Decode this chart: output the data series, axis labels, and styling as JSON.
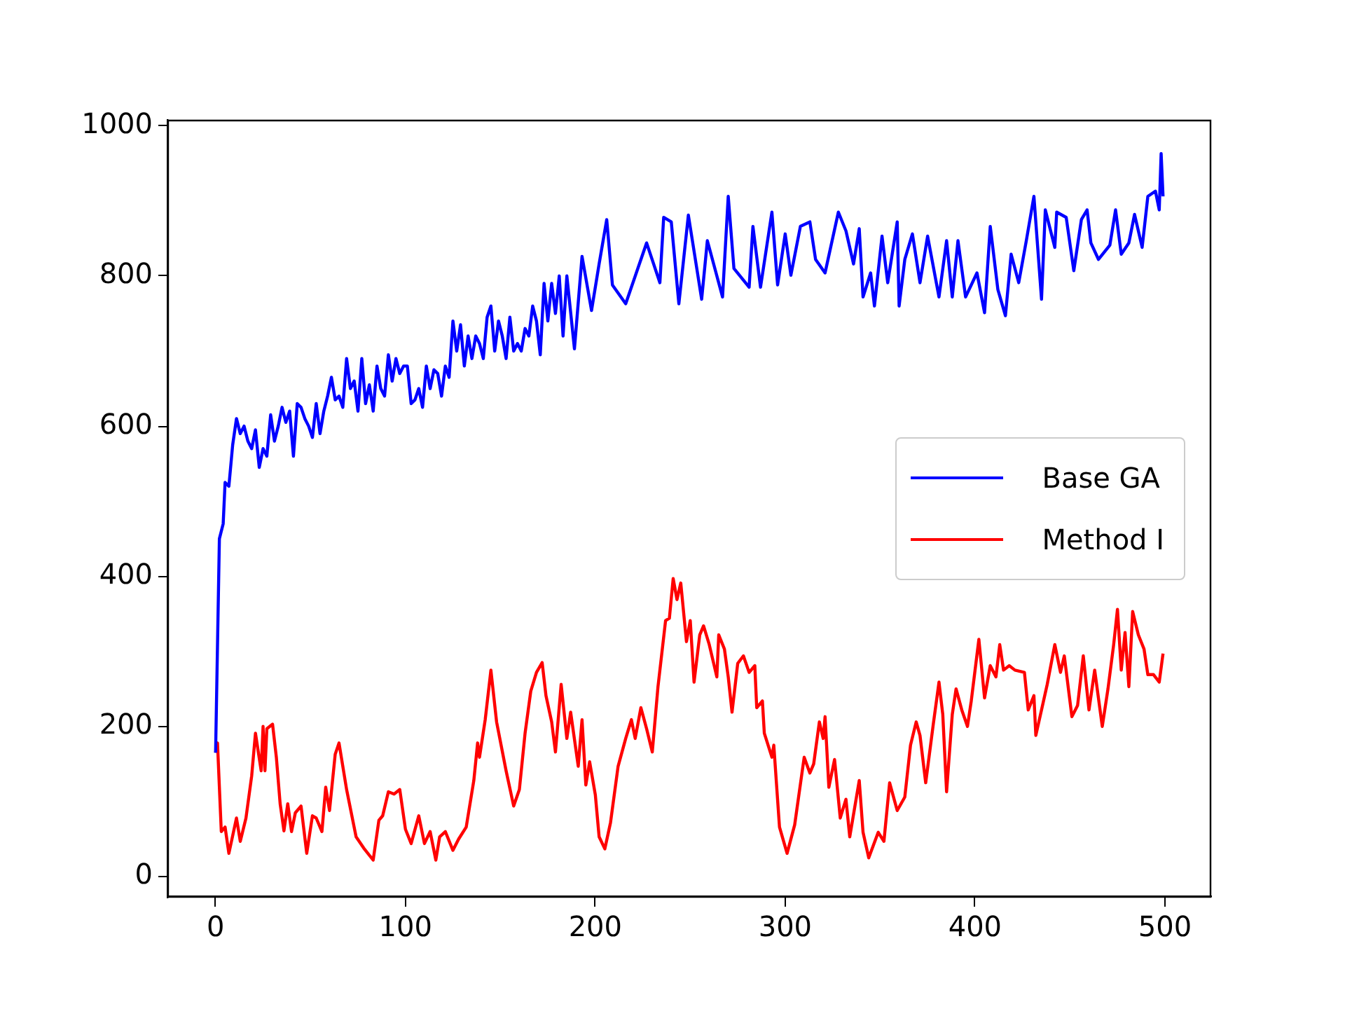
{
  "chart_data": {
    "type": "line",
    "xlim": [
      -25,
      524
    ],
    "ylim": [
      -27,
      1007
    ],
    "xticks": [
      0,
      100,
      200,
      300,
      400,
      500
    ],
    "yticks": [
      0,
      200,
      400,
      600,
      800,
      1000
    ],
    "legend": "right",
    "series": [
      {
        "name": "Base GA",
        "color": "#0000ff",
        "x": [
          0,
          2,
          4,
          5,
          7,
          9,
          11,
          13,
          15,
          17,
          19,
          21,
          23,
          25,
          27,
          29,
          31,
          33,
          35,
          37,
          39,
          41,
          43,
          45,
          47,
          49,
          51,
          53,
          55,
          57,
          59,
          61,
          63,
          65,
          67,
          69,
          71,
          73,
          75,
          77,
          79,
          81,
          83,
          85,
          87,
          89,
          91,
          93,
          95,
          97,
          99,
          101,
          103,
          105,
          107,
          109,
          111,
          113,
          115,
          117,
          119,
          121,
          123,
          125,
          127,
          129,
          131,
          133,
          135,
          137,
          139,
          141,
          143,
          145,
          147,
          149,
          151,
          153,
          155,
          157,
          159,
          161,
          163,
          165,
          167,
          169,
          171,
          173,
          175,
          177,
          179,
          181,
          183,
          185,
          189,
          193,
          198,
          202,
          206,
          209,
          216,
          227,
          234,
          236,
          240,
          244,
          249,
          256,
          259,
          267,
          270,
          273,
          281,
          283,
          287,
          293,
          296,
          300,
          303,
          308,
          313,
          316,
          321,
          328,
          332,
          336,
          339,
          341,
          345,
          347,
          351,
          354,
          359,
          360,
          363,
          367,
          371,
          375,
          381,
          385,
          388,
          391,
          395,
          401,
          405,
          408,
          412,
          416,
          419,
          423,
          427,
          431,
          435,
          437,
          442,
          443,
          448,
          452,
          456,
          459,
          461,
          465,
          471,
          474,
          477,
          481,
          484,
          488,
          491,
          495,
          497,
          498,
          499
        ],
        "values": [
          165,
          450,
          470,
          525,
          520,
          575,
          610,
          590,
          600,
          580,
          570,
          595,
          545,
          570,
          560,
          615,
          580,
          600,
          625,
          605,
          620,
          560,
          630,
          625,
          610,
          600,
          585,
          630,
          590,
          620,
          640,
          665,
          635,
          640,
          625,
          690,
          650,
          660,
          620,
          690,
          630,
          655,
          620,
          680,
          650,
          640,
          695,
          660,
          690,
          670,
          680,
          680,
          630,
          635,
          650,
          625,
          680,
          650,
          675,
          670,
          640,
          680,
          665,
          740,
          700,
          735,
          680,
          720,
          690,
          720,
          710,
          690,
          745,
          760,
          700,
          740,
          720,
          690,
          745,
          700,
          710,
          700,
          730,
          720,
          760,
          740,
          695,
          790,
          740,
          790,
          750,
          800,
          720,
          800,
          703,
          826,
          754,
          816,
          875,
          788,
          763,
          844,
          791,
          878,
          872,
          763,
          881,
          769,
          847,
          772,
          906,
          810,
          785,
          866,
          785,
          885,
          788,
          856,
          801,
          866,
          872,
          822,
          804,
          885,
          860,
          816,
          863,
          772,
          804,
          760,
          853,
          791,
          872,
          760,
          822,
          856,
          791,
          853,
          772,
          847,
          772,
          847,
          772,
          804,
          751,
          866,
          782,
          747,
          829,
          791,
          847,
          906,
          769,
          888,
          838,
          885,
          878,
          807,
          875,
          888,
          844,
          822,
          841,
          888,
          829,
          844,
          882,
          838,
          906,
          913,
          888,
          963,
          906
        ]
      },
      {
        "name": "Method I",
        "color": "#ff0000",
        "x": [
          0,
          1,
          3,
          5,
          7,
          11,
          13,
          16,
          19,
          21,
          24,
          25,
          26,
          27,
          30,
          32,
          34,
          36,
          38,
          40,
          42,
          45,
          48,
          51,
          53,
          56,
          58,
          60,
          63,
          65,
          69,
          74,
          78,
          83,
          86,
          88,
          91,
          94,
          97,
          100,
          103,
          107,
          110,
          113,
          116,
          118,
          121,
          125,
          128,
          132,
          136,
          138,
          139,
          142,
          145,
          148,
          153,
          157,
          160,
          163,
          166,
          169,
          172,
          174,
          177,
          179,
          182,
          185,
          187,
          191,
          193,
          195,
          197,
          200,
          202,
          205,
          208,
          212,
          216,
          219,
          221,
          224,
          227,
          230,
          233,
          237,
          239,
          241,
          243,
          245,
          248,
          250,
          252,
          255,
          257,
          260,
          264,
          265,
          268,
          270,
          272,
          275,
          278,
          281,
          284,
          285,
          288,
          289,
          293,
          294,
          297,
          301,
          305,
          310,
          313,
          315,
          318,
          320,
          321,
          323,
          326,
          329,
          332,
          334,
          339,
          341,
          344,
          349,
          352,
          355,
          359,
          363,
          366,
          369,
          371,
          374,
          378,
          381,
          383,
          385,
          388,
          390,
          393,
          396,
          398,
          400,
          402,
          405,
          408,
          411,
          413,
          415,
          418,
          421,
          426,
          428,
          431,
          432,
          435,
          438,
          442,
          445,
          447,
          451,
          454,
          457,
          460,
          463,
          467,
          470,
          473,
          475,
          477,
          479,
          481,
          483,
          486,
          489,
          491,
          494,
          497,
          499
        ],
        "values": [
          165,
          178,
          60,
          66,
          31,
          78,
          47,
          78,
          134,
          191,
          141,
          200,
          141,
          197,
          203,
          159,
          97,
          61,
          97,
          60,
          85,
          94,
          31,
          81,
          78,
          60,
          119,
          88,
          163,
          178,
          116,
          53,
          38,
          22,
          75,
          81,
          113,
          110,
          116,
          63,
          44,
          81,
          44,
          60,
          22,
          53,
          60,
          35,
          50,
          66,
          128,
          178,
          159,
          209,
          275,
          206,
          141,
          94,
          116,
          191,
          247,
          272,
          285,
          241,
          206,
          166,
          256,
          184,
          219,
          147,
          209,
          122,
          153,
          109,
          53,
          37,
          72,
          147,
          184,
          209,
          184,
          225,
          197,
          166,
          253,
          341,
          344,
          397,
          369,
          391,
          313,
          341,
          259,
          322,
          334,
          309,
          266,
          322,
          303,
          266,
          219,
          284,
          294,
          272,
          281,
          225,
          234,
          191,
          159,
          175,
          66,
          31,
          69,
          159,
          138,
          150,
          206,
          184,
          213,
          119,
          156,
          78,
          103,
          53,
          128,
          59,
          25,
          59,
          47,
          125,
          88,
          106,
          175,
          206,
          188,
          125,
          203,
          259,
          216,
          113,
          216,
          250,
          222,
          200,
          234,
          275,
          316,
          238,
          281,
          266,
          309,
          275,
          281,
          275,
          272,
          222,
          241,
          188,
          222,
          256,
          309,
          272,
          294,
          213,
          228,
          294,
          222,
          275,
          200,
          250,
          309,
          356,
          275,
          325,
          253,
          353,
          322,
          303,
          269,
          269,
          259,
          297
        ]
      }
    ]
  }
}
